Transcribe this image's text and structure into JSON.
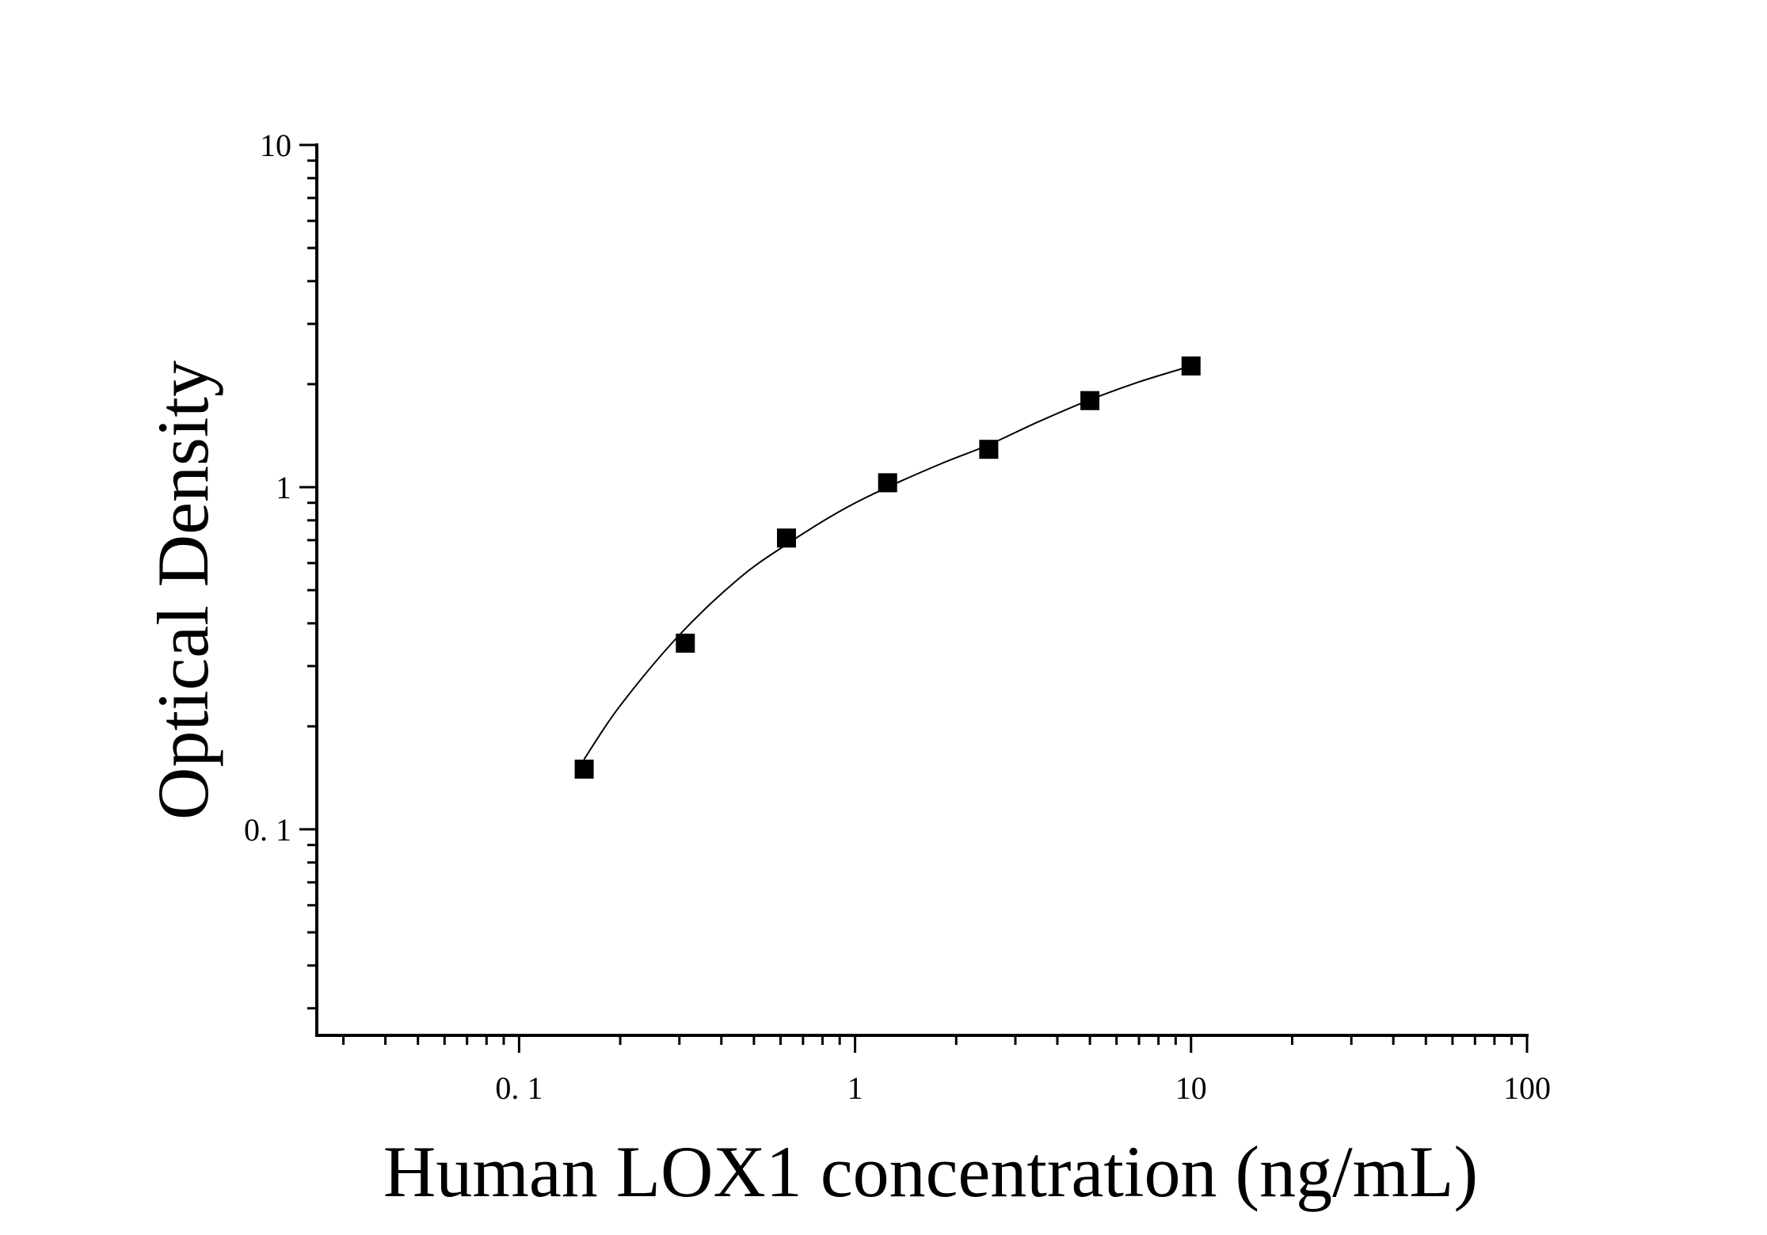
{
  "chart_data": {
    "type": "scatter",
    "xlabel": "Human LOX1 concentration (ng/mL)",
    "ylabel": "Optical Density",
    "x_scale": "log",
    "y_scale": "log",
    "xlim": [
      0.025,
      100
    ],
    "ylim": [
      0.025,
      10
    ],
    "x_ticks": [
      "0. 1",
      "1",
      "10",
      "100"
    ],
    "y_ticks": [
      "0. 1",
      "1",
      "10"
    ],
    "grid": false,
    "legend": "none",
    "marker": "square",
    "color": "#000000",
    "series": [
      {
        "x": [
          0.15625,
          0.3125,
          0.625,
          1.25,
          2.5,
          5,
          10
        ],
        "y": [
          0.15,
          0.35,
          0.71,
          1.03,
          1.29,
          1.79,
          2.26
        ]
      }
    ],
    "fit_curve": {
      "type": "smooth",
      "x": [
        0.156,
        0.2,
        0.3,
        0.45,
        0.625,
        0.9,
        1.25,
        1.8,
        2.5,
        3.5,
        5,
        7,
        10
      ],
      "y": [
        0.16,
        0.23,
        0.37,
        0.54,
        0.68,
        0.85,
        1.0,
        1.17,
        1.33,
        1.55,
        1.8,
        2.03,
        2.26
      ]
    }
  }
}
